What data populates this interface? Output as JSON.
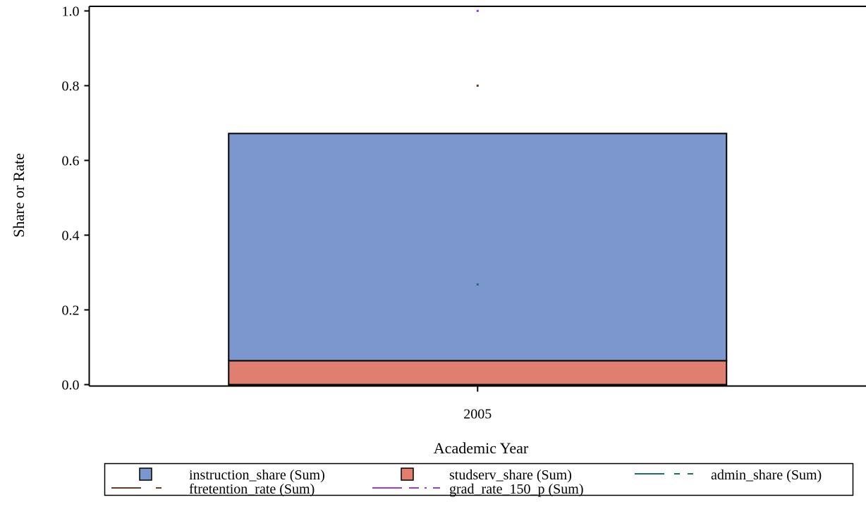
{
  "chart_data": {
    "type": "bar",
    "stacked": true,
    "categories": [
      "2005"
    ],
    "title": "",
    "xlabel": "Academic Year",
    "ylabel": "Share or Rate",
    "ylim": [
      0,
      1.0
    ],
    "yticks": [
      "0.0",
      "0.2",
      "0.4",
      "0.6",
      "0.8",
      "1.0"
    ],
    "grid": false,
    "legend_position": "bottom",
    "bar_series": [
      {
        "name": "studserv_share (Sum)",
        "values": [
          0.064
        ],
        "color": "#E07F6F"
      },
      {
        "name": "instruction_share (Sum)",
        "values": [
          0.608
        ],
        "color": "#7B97CD"
      }
    ],
    "line_series": [
      {
        "name": "admin_share (Sum)",
        "values": [
          0.268
        ],
        "color": "#1F6E6A",
        "dash": "dash"
      },
      {
        "name": "ftretention_rate (Sum)",
        "values": [
          0.8
        ],
        "color": "#6B3E1F",
        "dash": "longdash"
      },
      {
        "name": "grad_rate_150_p (Sum)",
        "values": [
          1.0
        ],
        "color": "#9B3ED6",
        "dash": "dashdot"
      }
    ],
    "legend": [
      {
        "label": "instruction_share (Sum)",
        "kind": "box",
        "color": "#7B97CD"
      },
      {
        "label": "studserv_share (Sum)",
        "kind": "box",
        "color": "#E07F6F"
      },
      {
        "label": "admin_share (Sum)",
        "kind": "line",
        "color": "#1F6E6A",
        "dash": "dash"
      },
      {
        "label": "ftretention_rate (Sum)",
        "kind": "line",
        "color": "#6B3E1F",
        "dash": "longdash"
      },
      {
        "label": "grad_rate_150_p (Sum)",
        "kind": "line",
        "color": "#9B3ED6",
        "dash": "dashdot"
      }
    ]
  }
}
